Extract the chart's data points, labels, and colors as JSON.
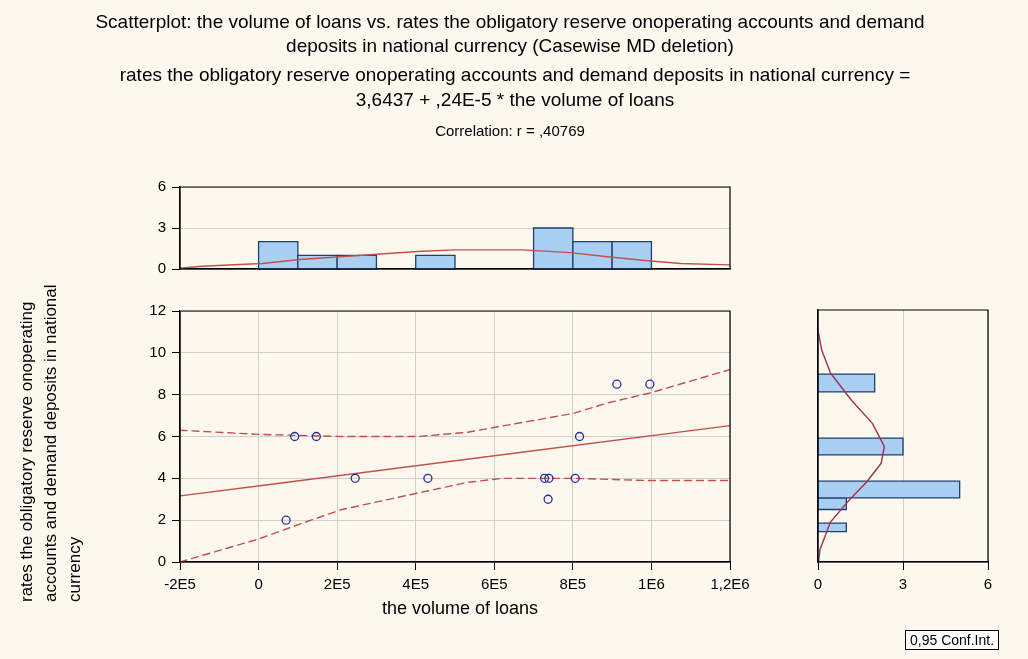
{
  "chart_data": [
    {
      "type": "histogram",
      "title": "Scatterplot: the volume of loans vs. rates the obligatory reserve onoperating accounts and demand deposits in national currency (Casewise MD deletion)",
      "subtitle": "rates the obligatory reserve onoperating accounts and demand deposits in national currency = 3,6437 + ,24E-5 * the volume of loans",
      "annotations": [
        "Correlation: r = ,40769"
      ],
      "xlim": [
        -200000,
        1200000
      ],
      "ylim": [
        0,
        6
      ],
      "yticks": [
        0,
        3,
        6
      ],
      "tick_labels": "y",
      "grid": "y",
      "series": [
        {
          "type": "histogram",
          "color": "#a9cff2",
          "bins": [
            0,
            100000,
            200000,
            300000,
            400000,
            500000,
            600000,
            700000,
            800000,
            900000,
            1000000
          ],
          "values": [
            2,
            1,
            1,
            0,
            1,
            0,
            0,
            3,
            2,
            2
          ]
        },
        {
          "type": "line",
          "color": "#c0504d",
          "x": [
            -200000,
            -145000,
            10000,
            105000,
            208000,
            311000,
            415000,
            500000,
            673000,
            793000,
            888000,
            991000,
            1075000,
            1200000
          ],
          "values": [
            0.05,
            0.2,
            0.4,
            0.7,
            0.9,
            1.1,
            1.3,
            1.4,
            1.4,
            1.2,
            0.9,
            0.6,
            0.4,
            0.3
          ]
        }
      ]
    },
    {
      "type": "scatter",
      "xlabel": "the volume of loans",
      "ylabel": "rates the obligatory reserve onoperating accounts and demand deposits in national currency",
      "annotations": [
        "0,95 Conf.Int."
      ],
      "xlim": [
        -200000,
        1200000
      ],
      "xticks": [
        {
          "value": -200000,
          "label": "-2E5"
        },
        0,
        {
          "value": 200000,
          "label": "2E5"
        },
        {
          "value": 400000,
          "label": "4E5"
        },
        {
          "value": 600000,
          "label": "6E5"
        },
        {
          "value": 800000,
          "label": "8E5"
        },
        {
          "value": 1000000,
          "label": "1E6"
        },
        {
          "value": 1200000,
          "label": "1,2E6"
        }
      ],
      "ylim": [
        0,
        12
      ],
      "yticks": [
        0,
        2,
        4,
        6,
        8,
        10,
        12
      ],
      "grid": true,
      "series": [
        {
          "type": "scatter",
          "marker": "circle",
          "color": "#2b2b9e",
          "x": [
            70000,
            92000,
            147000,
            246000,
            431000,
            728000,
            739000,
            737000,
            806000,
            817000,
            912000,
            996000
          ],
          "values": [
            2,
            6,
            6,
            4,
            4,
            4,
            4,
            3,
            4,
            6,
            8.5,
            8.5
          ]
        },
        {
          "type": "line",
          "marker": "none",
          "line_style": "solid",
          "color": "#c0504d",
          "x": [
            -200000,
            1200000
          ],
          "values": [
            3.16,
            6.52
          ]
        },
        {
          "type": "line",
          "marker": "none",
          "line_style": "dashed",
          "color": "#c0504d",
          "x": [
            -200000,
            0,
            210000,
            406000,
            531000,
            620000,
            710000,
            800000,
            888000,
            1000000,
            1200000
          ],
          "values": [
            6.3,
            6.1,
            6,
            6,
            6.2,
            6.5,
            6.8,
            7.1,
            7.6,
            8.1,
            9.2
          ]
        },
        {
          "type": "line",
          "marker": "none",
          "line_style": "dashed",
          "color": "#c0504d",
          "x": [
            -200000,
            0,
            103000,
            210000,
            406000,
            530000,
            620000,
            800000,
            980000,
            1200000
          ],
          "values": [
            0,
            1.1,
            1.8,
            2.5,
            3.3,
            3.8,
            4,
            4,
            3.9,
            3.9
          ]
        }
      ]
    },
    {
      "type": "histogram",
      "orientation": "horizontal",
      "xlim": [
        0,
        6
      ],
      "xticks": [
        0,
        3,
        6
      ],
      "ylim": [
        0,
        12
      ],
      "tick_labels": "x",
      "grid": "x",
      "series": [
        {
          "type": "histogram",
          "color": "#a9cff2",
          "bins": [
            1.45,
            1.85,
            2.5,
            3.05,
            3.85,
            5.1,
            5.9,
            8.1,
            8.95
          ],
          "values": [
            1,
            0,
            1,
            5,
            0,
            3,
            0,
            2
          ]
        },
        {
          "type": "line",
          "color": "#a0304d",
          "x": [
            10.9,
            10.1,
            9,
            7.7,
            6.6,
            5.5,
            4.7,
            3.8,
            2.9,
            1.9,
            0.6,
            0
          ],
          "values": [
            0.02,
            0.13,
            0.44,
            1.18,
            1.92,
            2.34,
            2.23,
            1.71,
            1.07,
            0.44,
            0.07,
            0.02
          ]
        }
      ]
    }
  ]
}
